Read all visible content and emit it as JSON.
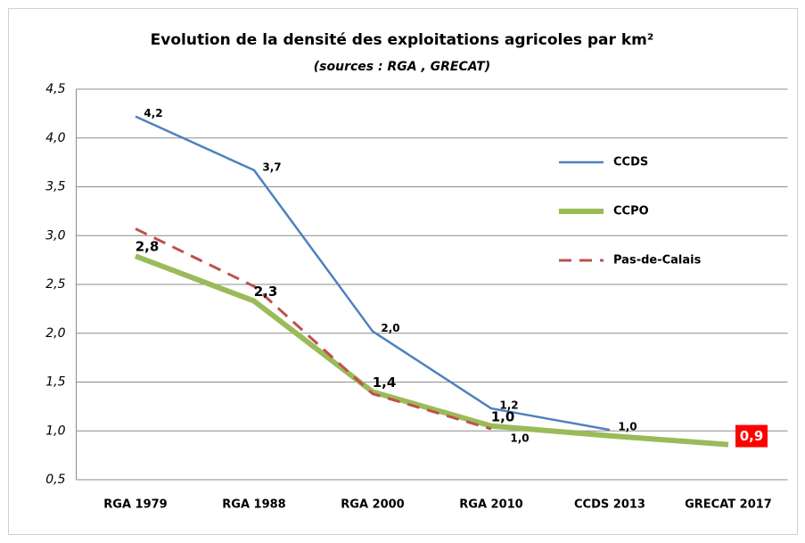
{
  "chart_data": {
    "type": "line",
    "title": "Evolution de la densité des exploitations agricoles par km²",
    "subtitle": "(sources : RGA , GRECAT)",
    "categories": [
      "RGA 1979",
      "RGA 1988",
      "RGA 2000",
      "RGA 2010",
      "CCDS 2013",
      "GRECAT 2017"
    ],
    "series": [
      {
        "name": "CCDS",
        "color": "#4f81bd",
        "style": "solid",
        "values": [
          4.22,
          3.67,
          2.02,
          1.23,
          1.01,
          null
        ],
        "value_labels": [
          "4,2",
          "3,7",
          "2,0",
          "1,2",
          "1,0",
          null
        ]
      },
      {
        "name": "CCPO",
        "color": "#9bbb59",
        "style": "thick",
        "values": [
          2.79,
          2.33,
          1.4,
          1.05,
          0.95,
          0.86
        ],
        "value_labels": [
          "2,8",
          "2,3",
          "1,4",
          "1,0",
          null,
          "0,9"
        ]
      },
      {
        "name": "Pas-de-Calais",
        "color": "#c0504d",
        "style": "dashed",
        "values": [
          3.07,
          2.48,
          1.38,
          1.02,
          null,
          null
        ],
        "value_labels": [
          null,
          null,
          null,
          "1,0",
          null,
          null
        ]
      }
    ],
    "ylim": [
      0.5,
      4.5
    ],
    "yticks": [
      {
        "value": 0.5,
        "label": "0,5"
      },
      {
        "value": 1.0,
        "label": "1,0"
      },
      {
        "value": 1.5,
        "label": "1,5"
      },
      {
        "value": 2.0,
        "label": "2,0"
      },
      {
        "value": 2.5,
        "label": "2,5"
      },
      {
        "value": 3.0,
        "label": "3,0"
      },
      {
        "value": 3.5,
        "label": "3,5"
      },
      {
        "value": 4.0,
        "label": "4,0"
      },
      {
        "value": 4.5,
        "label": "4,5"
      }
    ],
    "grid": true,
    "legend": "right"
  }
}
